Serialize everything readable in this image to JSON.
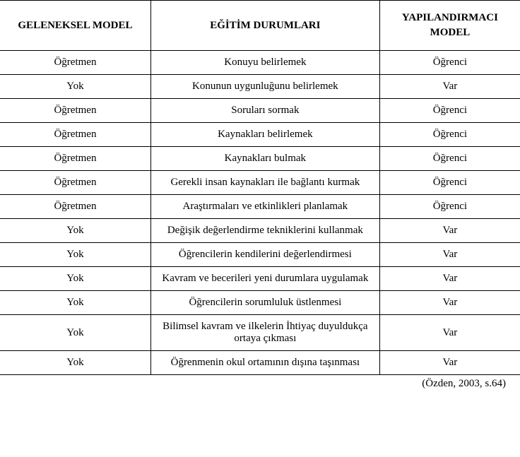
{
  "header": {
    "col1": "GELENEKSEL MODEL",
    "col2": "EĞİTİM DURUMLARI",
    "col3_line1": "YAPILANDIRMACI",
    "col3_line2": "MODEL"
  },
  "rows": [
    {
      "c1": "Öğretmen",
      "c2": "Konuyu belirlemek",
      "c3": "Öğrenci"
    },
    {
      "c1": "Yok",
      "c2": "Konunun uygunluğunu belirlemek",
      "c3": "Var"
    },
    {
      "c1": "Öğretmen",
      "c2": "Soruları sormak",
      "c3": "Öğrenci"
    },
    {
      "c1": "Öğretmen",
      "c2": "Kaynakları belirlemek",
      "c3": "Öğrenci"
    },
    {
      "c1": "Öğretmen",
      "c2": "Kaynakları bulmak",
      "c3": "Öğrenci"
    },
    {
      "c1": "Öğretmen",
      "c2": "Gerekli insan kaynakları ile bağlantı kurmak",
      "c3": "Öğrenci"
    },
    {
      "c1": "Öğretmen",
      "c2": "Araştırmaları ve etkinlikleri planlamak",
      "c3": "Öğrenci"
    },
    {
      "c1": "Yok",
      "c2": "Değişik değerlendirme tekniklerini kullanmak",
      "c3": "Var"
    },
    {
      "c1": "Yok",
      "c2": "Öğrencilerin kendilerini değerlendirmesi",
      "c3": "Var"
    },
    {
      "c1": "Yok",
      "c2": "Kavram ve becerileri yeni durumlara uygulamak",
      "c3": "Var"
    },
    {
      "c1": "Yok",
      "c2": "Öğrencilerin sorumluluk üstlenmesi",
      "c3": "Var"
    },
    {
      "c1": "Yok",
      "c2": "Bilimsel kavram ve ilkelerin İhtiyaç duyuldukça ortaya çıkması",
      "c3": "Var"
    },
    {
      "c1": "Yok",
      "c2": "Öğrenmenin okul ortamının dışına taşınması",
      "c3": "Var"
    }
  ],
  "caption": "(Özden, 2003, s.64)"
}
